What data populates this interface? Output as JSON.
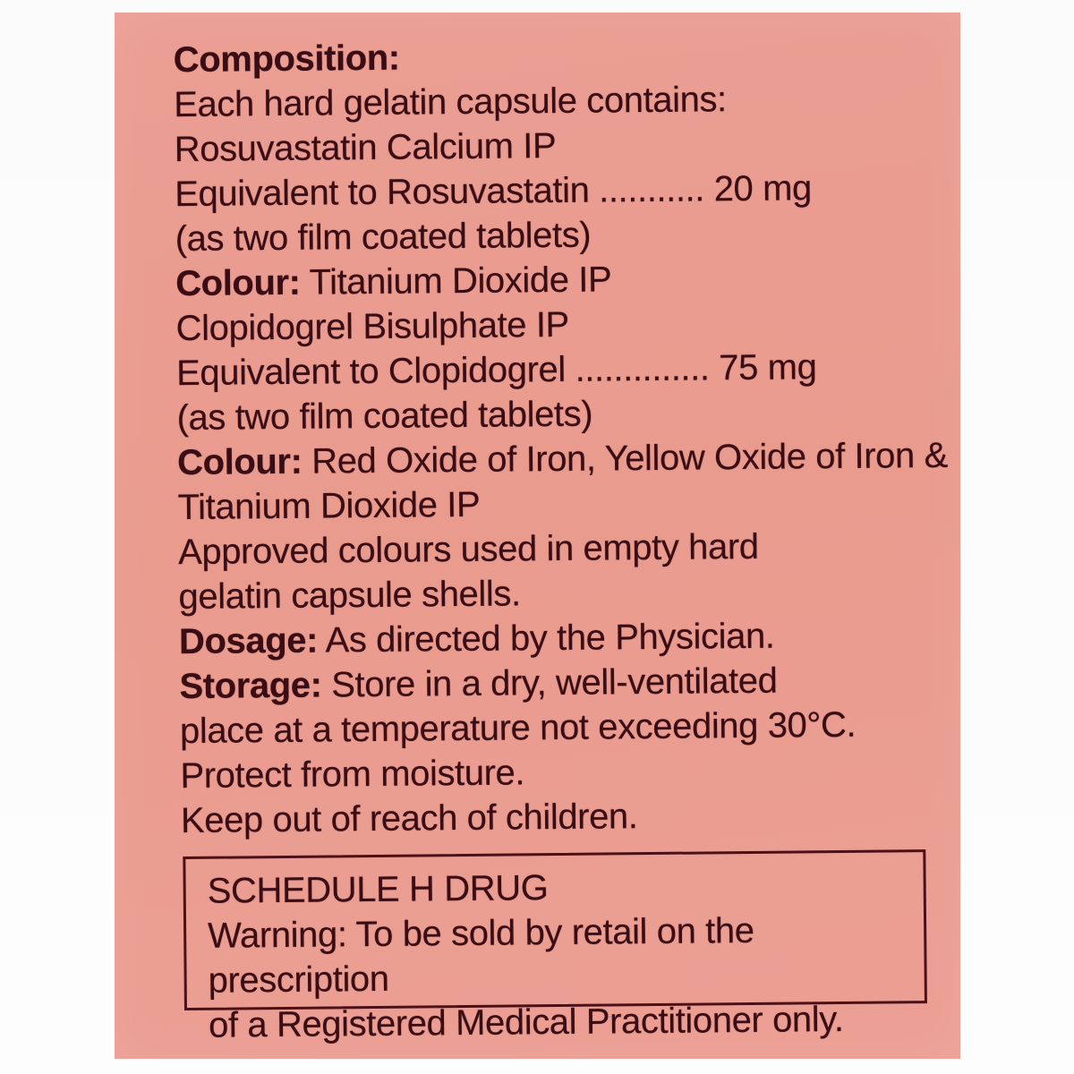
{
  "label": {
    "background_color": "#eb9e93",
    "text_color": "#3a0d14",
    "lines": [
      {
        "bold": "Composition:"
      },
      {
        "text": "Each hard gelatin capsule contains:"
      },
      {
        "text": "Rosuvastatin Calcium IP"
      },
      {
        "text": "Equivalent to Rosuvastatin ........... 20 mg"
      },
      {
        "text": "(as two film coated tablets)"
      },
      {
        "bold": "Colour:",
        "text": " Titanium Dioxide IP"
      },
      {
        "text": "Clopidogrel Bisulphate IP"
      },
      {
        "text": "Equivalent to Clopidogrel .............. 75 mg"
      },
      {
        "text": "(as two film coated tablets)"
      },
      {
        "bold": "Colour:",
        "text": " Red Oxide of Iron, Yellow Oxide of Iron &"
      },
      {
        "text": "Titanium Dioxide IP"
      },
      {
        "text": "Approved colours used in empty hard"
      },
      {
        "text": "gelatin capsule shells."
      },
      {
        "bold": "Dosage:",
        "text": " As directed by the Physician."
      },
      {
        "bold": "Storage:",
        "text": " Store in a dry, well-ventilated"
      },
      {
        "text": "place at a temperature not exceeding 30°C."
      },
      {
        "text": "Protect from moisture."
      },
      {
        "text": "Keep out of reach of children."
      }
    ],
    "schedule_box": {
      "title": "SCHEDULE H DRUG",
      "warning_line1": "Warning: To be sold by retail on the prescription",
      "warning_line2": "of a Registered Medical Practitioner only."
    }
  }
}
